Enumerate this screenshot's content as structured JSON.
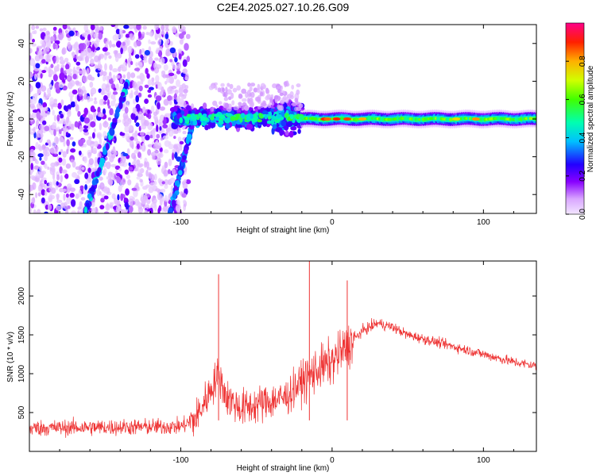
{
  "figure_title": "C2E4.2025.027.10.26.G09",
  "chart_data": [
    {
      "type": "heatmap",
      "xlabel": "Height of straight line (km)",
      "ylabel": "Frequency (Hz)",
      "xlim": [
        -200,
        135
      ],
      "ylim": [
        -50,
        50
      ],
      "x_ticks": [
        -100,
        0,
        100
      ],
      "y_ticks": [
        -40,
        -20,
        0,
        20,
        40
      ],
      "colorbar": {
        "label": "Normalized spectral amplitude",
        "range": [
          0.0,
          1.0
        ],
        "ticks": [
          "0.0",
          "0.2",
          "0.4",
          "0.6",
          "0.8"
        ],
        "tick_values": [
          0.0,
          0.2,
          0.4,
          0.6,
          0.8
        ]
      },
      "features": [
        {
          "type": "diagonal_line",
          "from": [
            -163,
            -50
          ],
          "to": [
            -135,
            20
          ],
          "amplitude": 0.35
        },
        {
          "type": "diagonal_line",
          "from": [
            -107,
            -50
          ],
          "to": [
            -93,
            -5
          ],
          "amplitude": 0.3
        },
        {
          "type": "band",
          "x_range": [
            -105,
            -20
          ],
          "frequency": 0,
          "amplitude": 0.4
        },
        {
          "type": "band",
          "x_range": [
            -20,
            135
          ],
          "frequency": 0,
          "amplitude": 0.5
        }
      ]
    },
    {
      "type": "line",
      "xlabel": "Height of straight line (km)",
      "ylabel": "SNR (10 * v/v)",
      "xlim": [
        -200,
        135
      ],
      "ylim": [
        0,
        2450
      ],
      "x_ticks": [
        -100,
        0,
        100
      ],
      "y_ticks": [
        500,
        1000,
        1500,
        2000
      ],
      "color": "#ee3333",
      "series_trend": {
        "x": [
          -200,
          -150,
          -100,
          -90,
          -80,
          -75,
          -70,
          -60,
          -50,
          -40,
          -30,
          -20,
          -10,
          0,
          10,
          20,
          30,
          40,
          50,
          60,
          70,
          80,
          90,
          100,
          110,
          120,
          135
        ],
        "y": [
          300,
          310,
          320,
          420,
          800,
          1000,
          700,
          550,
          600,
          650,
          700,
          900,
          1050,
          1150,
          1350,
          1550,
          1650,
          1600,
          1500,
          1450,
          1400,
          1350,
          1300,
          1250,
          1200,
          1150,
          1100
        ]
      },
      "peaks": [
        {
          "x": -75,
          "y": 2280
        },
        {
          "x": -15,
          "y": 2450
        },
        {
          "x": 10,
          "y": 2200
        }
      ]
    }
  ]
}
